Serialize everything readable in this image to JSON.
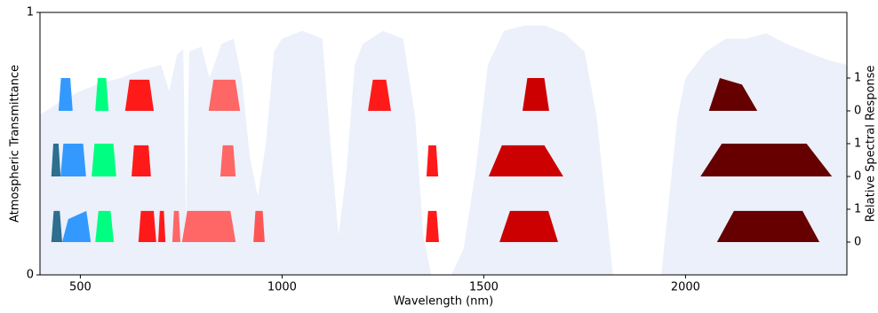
{
  "chart_data": {
    "type": "area",
    "xlabel": "Wavelength (nm)",
    "ylabel": "Atmospheric Transmittance",
    "y2label": "Relative Spectral Response",
    "xlim": [
      400,
      2400
    ],
    "xticks": [
      500,
      1000,
      1500,
      2000
    ],
    "ylim": [
      0,
      1
    ],
    "yticks": [
      0,
      1
    ],
    "y2lim": [
      -1,
      7
    ],
    "y2ticks": [
      0,
      1,
      {
        "value": 2,
        "label": "0"
      },
      {
        "value": 3,
        "label": "1"
      },
      {
        "value": 4,
        "label": "0"
      },
      {
        "value": 5,
        "label": "1"
      }
    ],
    "series": [
      {
        "color": "#ebf0fa",
        "x": [
          400,
          450,
          500,
          550,
          600,
          650,
          700,
          720,
          740,
          755,
          762,
          770,
          800,
          820,
          850,
          880,
          900,
          920,
          940,
          960,
          980,
          1000,
          1050,
          1100,
          1120,
          1140,
          1160,
          1180,
          1200,
          1250,
          1300,
          1330,
          1350,
          1370,
          1420,
          1450,
          1480,
          1510,
          1550,
          1600,
          1650,
          1700,
          1750,
          1780,
          1800,
          1820,
          1940,
          1960,
          1980,
          2000,
          2050,
          2100,
          2150,
          2200,
          2250,
          2300,
          2350,
          2400
        ],
        "values": [
          0.61,
          0.66,
          0.7,
          0.73,
          0.75,
          0.78,
          0.8,
          0.7,
          0.84,
          0.86,
          0.2,
          0.85,
          0.87,
          0.75,
          0.88,
          0.9,
          0.75,
          0.45,
          0.3,
          0.5,
          0.85,
          0.9,
          0.93,
          0.9,
          0.5,
          0.15,
          0.4,
          0.8,
          0.88,
          0.93,
          0.9,
          0.6,
          0.15,
          0,
          0,
          0.1,
          0.4,
          0.8,
          0.93,
          0.95,
          0.95,
          0.92,
          0.85,
          0.6,
          0.3,
          0,
          0,
          0.3,
          0.6,
          0.75,
          0.85,
          0.9,
          0.9,
          0.92,
          0.88,
          0.85,
          0.82,
          0.8
        ]
      },
      {
        "color": "#3399ff",
        "axis": "y2",
        "x": [
          446,
          452,
          475,
          481
        ],
        "values": [
          4,
          5,
          5,
          4
        ]
      },
      {
        "color": "#00ff80",
        "axis": "y2",
        "x": [
          537,
          543,
          564,
          570
        ],
        "values": [
          4,
          5,
          5,
          4
        ]
      },
      {
        "color": "#ff1a1a",
        "axis": "y2",
        "x": [
          611,
          622,
          671,
          682
        ],
        "values": [
          4,
          4.95,
          4.95,
          4
        ]
      },
      {
        "color": "#ff6666",
        "axis": "y2",
        "x": [
          818,
          830,
          884,
          896
        ],
        "values": [
          4,
          4.95,
          4.95,
          4
        ]
      },
      {
        "color": "#ff1a1a",
        "axis": "y2",
        "x": [
          1213,
          1225,
          1258,
          1270
        ],
        "values": [
          4,
          4.95,
          4.95,
          4
        ]
      },
      {
        "color": "#cc0000",
        "axis": "y2",
        "x": [
          1596,
          1608,
          1650,
          1662
        ],
        "values": [
          4,
          5,
          5,
          4
        ]
      },
      {
        "color": "#660000",
        "axis": "y2",
        "x": [
          2058,
          2085,
          2140,
          2178
        ],
        "values": [
          4,
          5,
          4.8,
          4
        ]
      },
      {
        "color": "#2e6e8e",
        "axis": "y2",
        "x": [
          428,
          433,
          446,
          451
        ],
        "values": [
          2,
          3,
          3,
          2
        ]
      },
      {
        "color": "#3399ff",
        "axis": "y2",
        "x": [
          451,
          458,
          507,
          514
        ],
        "values": [
          2,
          3,
          3,
          2
        ]
      },
      {
        "color": "#00ff80",
        "axis": "y2",
        "x": [
          528,
          535,
          582,
          589
        ],
        "values": [
          2,
          3,
          3,
          2
        ]
      },
      {
        "color": "#ff1a1a",
        "axis": "y2",
        "x": [
          627,
          633,
          669,
          675
        ],
        "values": [
          2,
          2.95,
          2.95,
          2
        ]
      },
      {
        "color": "#ff6666",
        "axis": "y2",
        "x": [
          847,
          853,
          879,
          885
        ],
        "values": [
          2,
          2.95,
          2.95,
          2
        ]
      },
      {
        "color": "#ff1a1a",
        "axis": "y2",
        "x": [
          1358,
          1363,
          1382,
          1387
        ],
        "values": [
          2,
          2.95,
          2.95,
          2
        ]
      },
      {
        "color": "#cc0000",
        "axis": "y2",
        "x": [
          1512,
          1545,
          1650,
          1697
        ],
        "values": [
          2,
          2.95,
          2.95,
          2
        ]
      },
      {
        "color": "#660000",
        "axis": "y2",
        "x": [
          2037,
          2090,
          2300,
          2363
        ],
        "values": [
          2,
          3,
          3,
          2
        ]
      },
      {
        "color": "#2e6e8e",
        "axis": "y2",
        "x": [
          428,
          434,
          449,
          455
        ],
        "values": [
          0,
          0.95,
          0.95,
          0
        ]
      },
      {
        "color": "#3399ff",
        "axis": "y2",
        "x": [
          455,
          470,
          515,
          526
        ],
        "values": [
          0,
          0.7,
          0.95,
          0
        ]
      },
      {
        "color": "#00ff80",
        "axis": "y2",
        "x": [
          537,
          545,
          575,
          583
        ],
        "values": [
          0,
          0.95,
          0.95,
          0
        ]
      },
      {
        "color": "#ff1a1a",
        "axis": "y2",
        "x": [
          644,
          650,
          682,
          688
        ],
        "values": [
          0,
          0.95,
          0.95,
          0
        ]
      },
      {
        "color": "#ff1a1a",
        "axis": "y2",
        "x": [
          693,
          697,
          707,
          711
        ],
        "values": [
          0,
          0.95,
          0.95,
          0
        ]
      },
      {
        "color": "#ff6666",
        "axis": "y2",
        "x": [
          728,
          732,
          744,
          748
        ],
        "values": [
          0,
          0.95,
          0.95,
          0
        ]
      },
      {
        "color": "#ff6666",
        "axis": "y2",
        "x": [
          752,
          765,
          872,
          885
        ],
        "values": [
          0,
          0.95,
          0.95,
          0
        ]
      },
      {
        "color": "#ff5555",
        "axis": "y2",
        "x": [
          929,
          934,
          952,
          957
        ],
        "values": [
          0,
          0.95,
          0.95,
          0
        ]
      },
      {
        "color": "#ff1a1a",
        "axis": "y2",
        "x": [
          1356,
          1362,
          1383,
          1389
        ],
        "values": [
          0,
          0.95,
          0.95,
          0
        ]
      },
      {
        "color": "#cc0000",
        "axis": "y2",
        "x": [
          1539,
          1565,
          1660,
          1684
        ],
        "values": [
          0,
          0.95,
          0.95,
          0
        ]
      },
      {
        "color": "#660000",
        "axis": "y2",
        "x": [
          2078,
          2120,
          2290,
          2332
        ],
        "values": [
          0,
          0.95,
          0.95,
          0
        ]
      }
    ]
  }
}
